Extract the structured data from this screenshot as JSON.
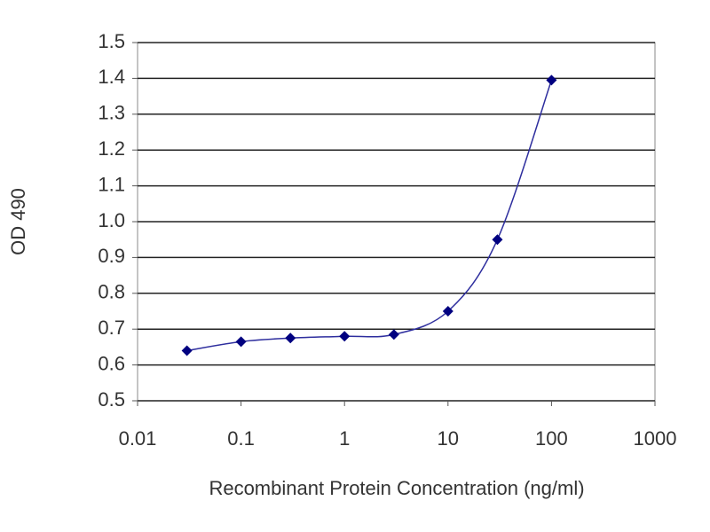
{
  "chart_data": {
    "type": "line",
    "x_label": "Recombinant Protein Concentration (ng/ml)",
    "y_label": "OD 490",
    "x": [
      0.03,
      0.1,
      0.3,
      1,
      3,
      10,
      30,
      100
    ],
    "series": [
      {
        "color": "#2e2e9e",
        "marker_color": "#000080",
        "values": [
          0.64,
          0.665,
          0.675,
          0.68,
          0.685,
          0.75,
          0.95,
          1.395
        ]
      }
    ],
    "xscale": "log",
    "xlim": [
      0.01,
      1000
    ],
    "xticks": [
      0.01,
      0.1,
      1,
      10,
      100,
      1000
    ],
    "ylim": [
      0.5,
      1.5
    ],
    "yticks": [
      0.5,
      0.6,
      0.7,
      0.8,
      0.9,
      {
        "value": 1,
        "label": "1.0"
      },
      1.1,
      1.2,
      1.3,
      1.4,
      1.5
    ],
    "grid": true
  }
}
